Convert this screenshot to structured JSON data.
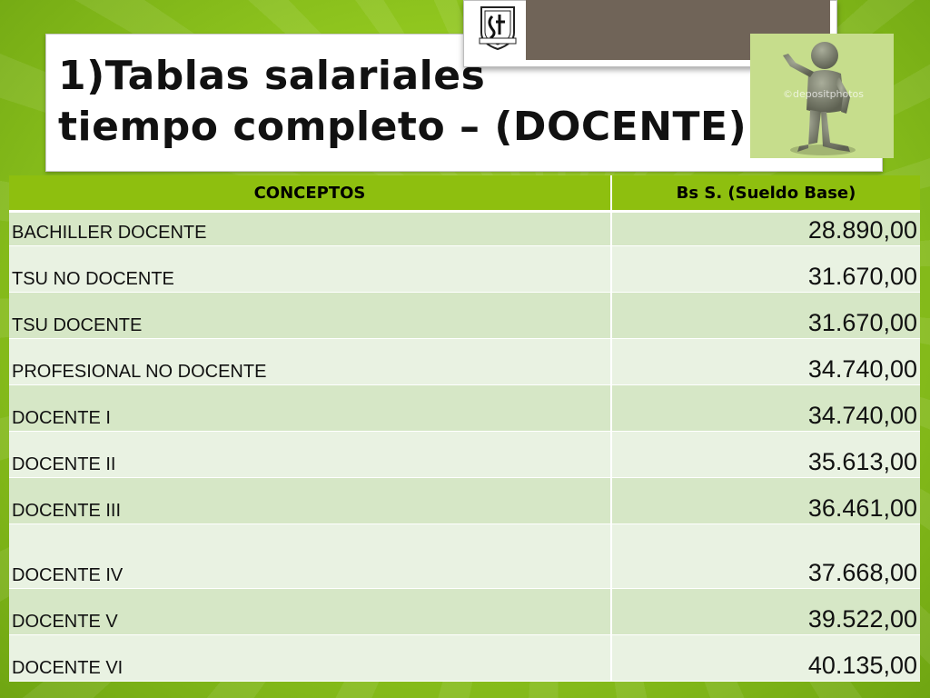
{
  "slide": {
    "title_line1": "1)Tablas salariales",
    "title_line2": "tiempo completo – (DOCENTE)",
    "watermark": "©depositphotos"
  },
  "table": {
    "headers": [
      "CONCEPTOS",
      "Bs S. (Sueldo Base)"
    ],
    "rows": [
      {
        "concepto": "BACHILLER DOCENTE",
        "sueldo": "28.890,00"
      },
      {
        "concepto": "TSU NO DOCENTE",
        "sueldo": "31.670,00"
      },
      {
        "concepto": "TSU DOCENTE",
        "sueldo": "31.670,00"
      },
      {
        "concepto": "PROFESIONAL NO DOCENTE",
        "sueldo": "34.740,00"
      },
      {
        "concepto": "DOCENTE I",
        "sueldo": "34.740,00"
      },
      {
        "concepto": "DOCENTE II",
        "sueldo": "35.613,00"
      },
      {
        "concepto": "DOCENTE III",
        "sueldo": "36.461,00"
      },
      {
        "concepto": "DOCENTE IV",
        "sueldo": "37.668,00"
      },
      {
        "concepto": "DOCENTE V",
        "sueldo": "39.522,00"
      },
      {
        "concepto": "DOCENTE VI",
        "sueldo": "40.135,00"
      }
    ]
  },
  "colors": {
    "background": "#96cc21",
    "header": "#8ebf0f",
    "row_odd": "#d6e7c6",
    "row_even": "#e9f2e2",
    "photo_dark": "#706458"
  },
  "icons": {
    "seal": "institution-seal-icon",
    "figure": "pointing-figure-icon"
  }
}
